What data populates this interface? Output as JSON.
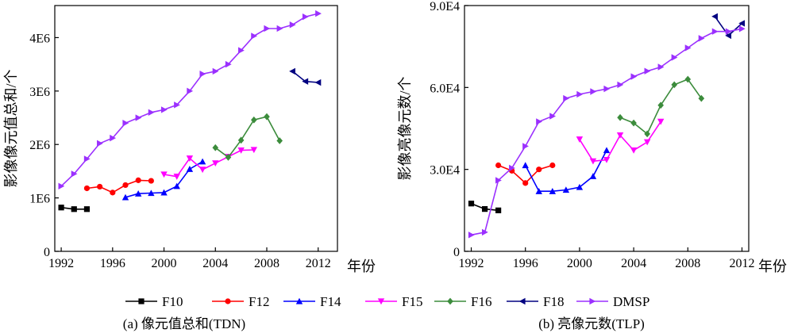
{
  "chart_data": [
    {
      "type": "line",
      "caption": "(a) 像元值总和(TDN)",
      "xlabel": "年份",
      "ylabel": "影像像元值总和/个",
      "xlim": [
        1991.5,
        2013.5
      ],
      "ylim": [
        0,
        4600000
      ],
      "x_ticks": [
        1992,
        1996,
        2000,
        2004,
        2008,
        2012
      ],
      "x_tick_labels": [
        "1992",
        "1996",
        "2000",
        "2004",
        "2008",
        "2012"
      ],
      "y_ticks": [
        0,
        1000000,
        2000000,
        3000000,
        4000000
      ],
      "y_tick_labels": [
        "0",
        "1E6",
        "2E6",
        "3E6",
        "4E6"
      ],
      "series": [
        {
          "name": "F10",
          "x": [
            1992,
            1993,
            1994
          ],
          "y": [
            820000,
            790000,
            790000
          ]
        },
        {
          "name": "F12",
          "x": [
            1994,
            1995,
            1996,
            1997,
            1998,
            1999
          ],
          "y": [
            1180000,
            1210000,
            1100000,
            1240000,
            1330000,
            1320000
          ]
        },
        {
          "name": "F14",
          "x": [
            1997,
            1998,
            1999,
            2000,
            2001,
            2002,
            2003
          ],
          "y": [
            1010000,
            1080000,
            1090000,
            1100000,
            1220000,
            1540000,
            1680000
          ]
        },
        {
          "name": "F15",
          "x": [
            2000,
            2001,
            2002,
            2003,
            2004,
            2005,
            2006,
            2007
          ],
          "y": [
            1440000,
            1400000,
            1740000,
            1530000,
            1650000,
            1770000,
            1890000,
            1900000
          ]
        },
        {
          "name": "F16",
          "x": [
            2004,
            2005,
            2006,
            2007,
            2008,
            2009
          ],
          "y": [
            1940000,
            1760000,
            2080000,
            2460000,
            2520000,
            2070000
          ]
        },
        {
          "name": "F18",
          "x": [
            2010,
            2011,
            2012
          ],
          "y": [
            3370000,
            3180000,
            3160000
          ]
        },
        {
          "name": "DMSP",
          "x": [
            1992,
            1993,
            1994,
            1995,
            1996,
            1997,
            1998,
            1999,
            2000,
            2001,
            2002,
            2003,
            2004,
            2005,
            2006,
            2007,
            2008,
            2009,
            2010,
            2011,
            2012
          ],
          "y": [
            1220000,
            1450000,
            1730000,
            2020000,
            2120000,
            2400000,
            2500000,
            2600000,
            2650000,
            2740000,
            3000000,
            3320000,
            3370000,
            3500000,
            3760000,
            4030000,
            4170000,
            4170000,
            4240000,
            4390000,
            4450000
          ]
        }
      ]
    },
    {
      "type": "line",
      "caption": "(b) 亮像元数(TLP)",
      "xlabel": "年份",
      "ylabel": "影像亮像元数/个",
      "xlim": [
        1991.5,
        2012.5
      ],
      "ylim": [
        0,
        90000
      ],
      "x_ticks": [
        1992,
        1996,
        2000,
        2004,
        2008,
        2012
      ],
      "x_tick_labels": [
        "1992",
        "1996",
        "2000",
        "2004",
        "2008",
        "2012"
      ],
      "y_ticks": [
        0,
        30000,
        60000,
        90000
      ],
      "y_tick_labels": [
        "0",
        "3.0E4",
        "6.0E4",
        "9.0E4"
      ],
      "series": [
        {
          "name": "F10",
          "x": [
            1992,
            1993,
            1994
          ],
          "y": [
            17500,
            15500,
            15000
          ]
        },
        {
          "name": "F12",
          "x": [
            1994,
            1995,
            1996,
            1997,
            1998
          ],
          "y": [
            31500,
            29500,
            25000,
            30000,
            31500
          ]
        },
        {
          "name": "F14",
          "x": [
            1996,
            1997,
            1998,
            1999,
            2000,
            2001,
            2002
          ],
          "y": [
            31500,
            22000,
            22000,
            22500,
            23500,
            27500,
            37000
          ]
        },
        {
          "name": "F15",
          "x": [
            2000,
            2001,
            2002,
            2003,
            2004,
            2005,
            2006
          ],
          "y": [
            41000,
            33000,
            33500,
            42500,
            37000,
            40000,
            47500
          ]
        },
        {
          "name": "F16",
          "x": [
            2003,
            2004,
            2005,
            2006,
            2007,
            2008,
            2009
          ],
          "y": [
            49000,
            47000,
            43000,
            53500,
            61000,
            63000,
            56000
          ]
        },
        {
          "name": "F18",
          "x": [
            2010,
            2011,
            2012
          ],
          "y": [
            86000,
            79000,
            83500
          ]
        },
        {
          "name": "DMSP",
          "x": [
            1992,
            1993,
            1994,
            1995,
            1996,
            1997,
            1998,
            1999,
            2000,
            2001,
            2002,
            2003,
            2004,
            2005,
            2006,
            2007,
            2008,
            2009,
            2010,
            2011,
            2012
          ],
          "y": [
            6000,
            7000,
            26000,
            30500,
            38500,
            47500,
            49500,
            56000,
            57500,
            58500,
            59500,
            61000,
            64000,
            66000,
            67500,
            71000,
            74500,
            78000,
            80500,
            80500,
            81500
          ]
        }
      ]
    }
  ],
  "legend": [
    {
      "name": "F10",
      "color": "#000000",
      "marker": "square"
    },
    {
      "name": "F12",
      "color": "#ff0000",
      "marker": "circle"
    },
    {
      "name": "F14",
      "color": "#0000ff",
      "marker": "triangle-up"
    },
    {
      "name": "F15",
      "color": "#ff00ff",
      "marker": "triangle-down"
    },
    {
      "name": "F16",
      "color": "#3c8c3c",
      "marker": "diamond"
    },
    {
      "name": "F18",
      "color": "#000080",
      "marker": "triangle-left"
    },
    {
      "name": "DMSP",
      "color": "#9b30ff",
      "marker": "triangle-right"
    }
  ]
}
